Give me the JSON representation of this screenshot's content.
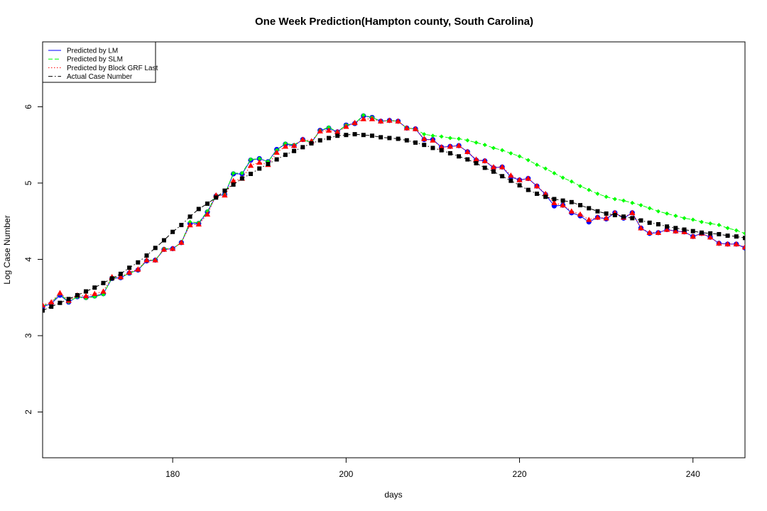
{
  "chart_data": {
    "type": "line",
    "title": "One Week Prediction(Hampton county, South Carolina)",
    "xlabel": "days",
    "ylabel": "Log Case Number",
    "xlim": [
      165,
      246
    ],
    "ylim": [
      1.4,
      6.85
    ],
    "xticks": [
      180,
      200,
      220,
      240
    ],
    "yticks": [
      2,
      3,
      4,
      5,
      6
    ],
    "grid": false,
    "legend_position": "top-left",
    "x": [
      165,
      166,
      167,
      168,
      169,
      170,
      171,
      172,
      173,
      174,
      175,
      176,
      177,
      178,
      179,
      180,
      181,
      182,
      183,
      184,
      185,
      186,
      187,
      188,
      189,
      190,
      191,
      192,
      193,
      194,
      195,
      196,
      197,
      198,
      199,
      200,
      201,
      202,
      203,
      204,
      205,
      206,
      207,
      208,
      209,
      210,
      211,
      212,
      213,
      214,
      215,
      216,
      217,
      218,
      219,
      220,
      221,
      222,
      223,
      224,
      225,
      226,
      227,
      228,
      229,
      230,
      231,
      232,
      233,
      234,
      235,
      236,
      237,
      238,
      239,
      240,
      241,
      242,
      243,
      244,
      245,
      246
    ],
    "series": [
      {
        "name": "Predicted by LM",
        "color": "#0000ff",
        "line_style": "solid",
        "marker": "circle",
        "values": [
          3.38,
          3.42,
          3.53,
          3.44,
          3.51,
          3.5,
          3.52,
          3.55,
          3.75,
          3.76,
          3.82,
          3.86,
          3.98,
          3.99,
          4.13,
          4.14,
          4.22,
          4.47,
          4.47,
          4.62,
          4.83,
          4.85,
          5.12,
          5.12,
          5.3,
          5.32,
          5.28,
          5.44,
          5.51,
          5.49,
          5.57,
          5.53,
          5.69,
          5.72,
          5.67,
          5.76,
          5.78,
          5.88,
          5.86,
          5.81,
          5.82,
          5.81,
          5.72,
          5.71,
          5.57,
          5.57,
          5.47,
          5.48,
          5.49,
          5.41,
          5.3,
          5.29,
          5.2,
          5.21,
          5.08,
          5.04,
          5.06,
          4.96,
          4.85,
          4.7,
          4.71,
          4.61,
          4.57,
          4.49,
          4.55,
          4.53,
          4.61,
          4.54,
          4.61,
          4.41,
          4.34,
          4.35,
          4.39,
          4.37,
          4.36,
          4.3,
          4.34,
          4.29,
          4.21,
          4.2,
          4.2,
          4.15
        ]
      },
      {
        "name": "Predicted by SLM",
        "color": "#00ff00",
        "line_style": "dashed",
        "marker": "diamond",
        "values": [
          3.39,
          3.43,
          3.55,
          3.44,
          3.51,
          3.49,
          3.51,
          3.54,
          3.76,
          3.76,
          3.82,
          3.86,
          3.99,
          3.99,
          4.14,
          4.14,
          4.22,
          4.49,
          4.48,
          4.63,
          4.84,
          4.85,
          5.13,
          5.13,
          5.31,
          5.32,
          5.28,
          5.43,
          5.52,
          5.5,
          5.57,
          5.53,
          5.69,
          5.73,
          5.67,
          5.76,
          5.78,
          5.89,
          5.86,
          5.81,
          5.82,
          5.81,
          5.72,
          5.71,
          5.64,
          5.62,
          5.61,
          5.59,
          5.58,
          5.56,
          5.53,
          5.5,
          5.46,
          5.43,
          5.39,
          5.35,
          5.3,
          5.24,
          5.19,
          5.13,
          5.07,
          5.02,
          4.96,
          4.91,
          4.86,
          4.82,
          4.79,
          4.77,
          4.74,
          4.71,
          4.67,
          4.63,
          4.6,
          4.57,
          4.54,
          4.52,
          4.49,
          4.47,
          4.45,
          4.41,
          4.38,
          4.34
        ]
      },
      {
        "name": "Predicted by Block GRF Last",
        "color": "#ff0000",
        "line_style": "dotted",
        "marker": "triangle",
        "values": [
          3.4,
          3.44,
          3.56,
          3.46,
          3.53,
          3.52,
          3.55,
          3.58,
          3.77,
          3.77,
          3.83,
          3.87,
          3.99,
          3.99,
          4.13,
          4.14,
          4.22,
          4.45,
          4.46,
          4.59,
          4.84,
          4.84,
          5.03,
          5.06,
          5.23,
          5.27,
          5.24,
          5.4,
          5.48,
          5.49,
          5.57,
          5.55,
          5.68,
          5.69,
          5.67,
          5.74,
          5.79,
          5.84,
          5.84,
          5.81,
          5.82,
          5.81,
          5.72,
          5.71,
          5.58,
          5.56,
          5.47,
          5.48,
          5.49,
          5.41,
          5.31,
          5.29,
          5.21,
          5.21,
          5.1,
          5.04,
          5.06,
          4.96,
          4.86,
          4.74,
          4.71,
          4.63,
          4.59,
          4.52,
          4.55,
          4.54,
          4.61,
          4.55,
          4.61,
          4.41,
          4.35,
          4.35,
          4.39,
          4.37,
          4.36,
          4.3,
          4.34,
          4.29,
          4.21,
          4.2,
          4.2,
          4.16
        ]
      },
      {
        "name": "Actual Case Number",
        "color": "#000000",
        "line_style": "dashdot",
        "marker": "square",
        "values": [
          3.33,
          3.38,
          3.43,
          3.48,
          3.53,
          3.58,
          3.63,
          3.69,
          3.75,
          3.81,
          3.89,
          3.96,
          4.05,
          4.15,
          4.25,
          4.36,
          4.45,
          4.56,
          4.66,
          4.73,
          4.81,
          4.9,
          4.98,
          5.06,
          5.12,
          5.19,
          5.25,
          5.31,
          5.37,
          5.42,
          5.47,
          5.52,
          5.56,
          5.59,
          5.62,
          5.63,
          5.64,
          5.63,
          5.62,
          5.6,
          5.59,
          5.58,
          5.56,
          5.53,
          5.5,
          5.46,
          5.43,
          5.39,
          5.35,
          5.31,
          5.26,
          5.2,
          5.15,
          5.09,
          5.03,
          4.97,
          4.91,
          4.86,
          4.82,
          4.79,
          4.77,
          4.75,
          4.71,
          4.67,
          4.63,
          4.6,
          4.58,
          4.56,
          4.54,
          4.51,
          4.48,
          4.46,
          4.43,
          4.41,
          4.39,
          4.37,
          4.35,
          4.34,
          4.33,
          4.31,
          4.3,
          4.28
        ]
      }
    ]
  }
}
